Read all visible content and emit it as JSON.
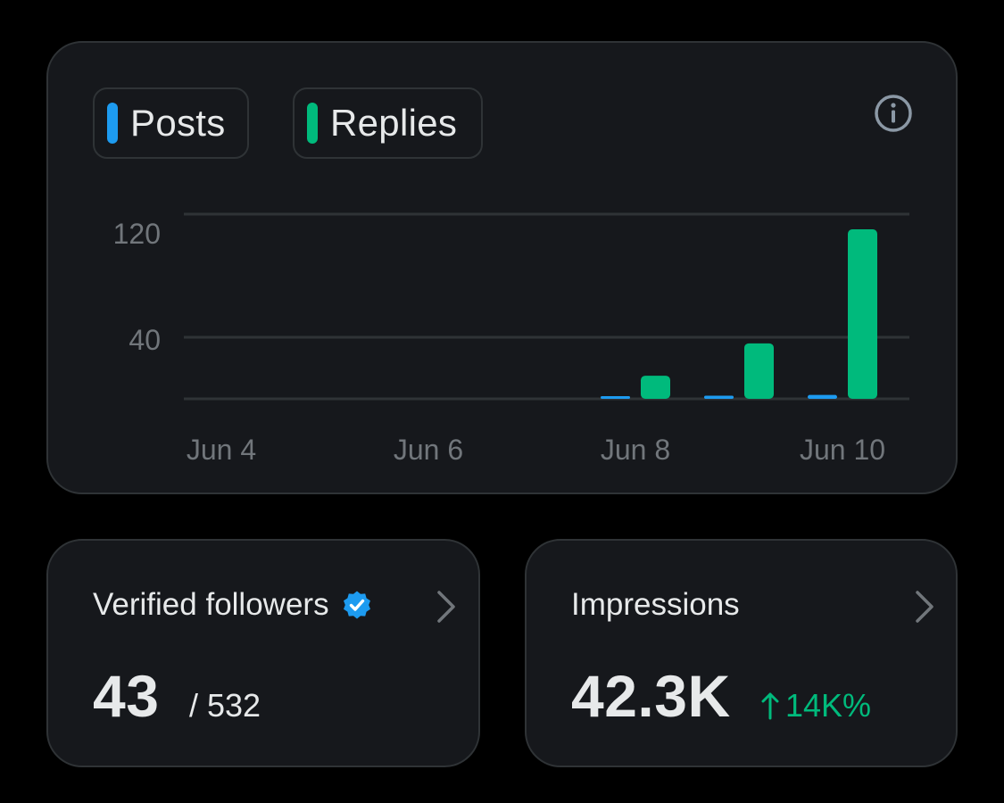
{
  "legend": {
    "posts_label": "Posts",
    "replies_label": "Replies"
  },
  "colors": {
    "posts": "#1d9bf0",
    "replies": "#00ba7c",
    "verified": "#1d9bf0",
    "delta_positive": "#00ba7c"
  },
  "icons": {
    "info": "info-icon",
    "verified": "verified-badge-icon",
    "chevron": "chevron-right-icon",
    "delta": "arrow-up-icon"
  },
  "chart_data": {
    "type": "bar",
    "x": [
      "Jun 4",
      "Jun 5",
      "Jun 6",
      "Jun 7",
      "Jun 8",
      "Jun 9",
      "Jun 10"
    ],
    "x_tick_labels": [
      "Jun 4",
      "Jun 6",
      "Jun 8",
      "Jun 10"
    ],
    "y_tick_labels": [
      "120",
      "40"
    ],
    "series": [
      {
        "name": "Posts",
        "values": [
          0,
          0,
          0,
          0,
          0.5,
          2,
          2.5
        ]
      },
      {
        "name": "Replies",
        "values": [
          0,
          0,
          0,
          0,
          15,
          36,
          110
        ]
      }
    ],
    "ylim": [
      0,
      120
    ],
    "grid": true,
    "legend": "top-left"
  },
  "followers": {
    "title": "Verified followers",
    "value": "43",
    "total": "/ 532"
  },
  "impressions": {
    "title": "Impressions",
    "value": "42.3K",
    "delta": "14K%"
  }
}
